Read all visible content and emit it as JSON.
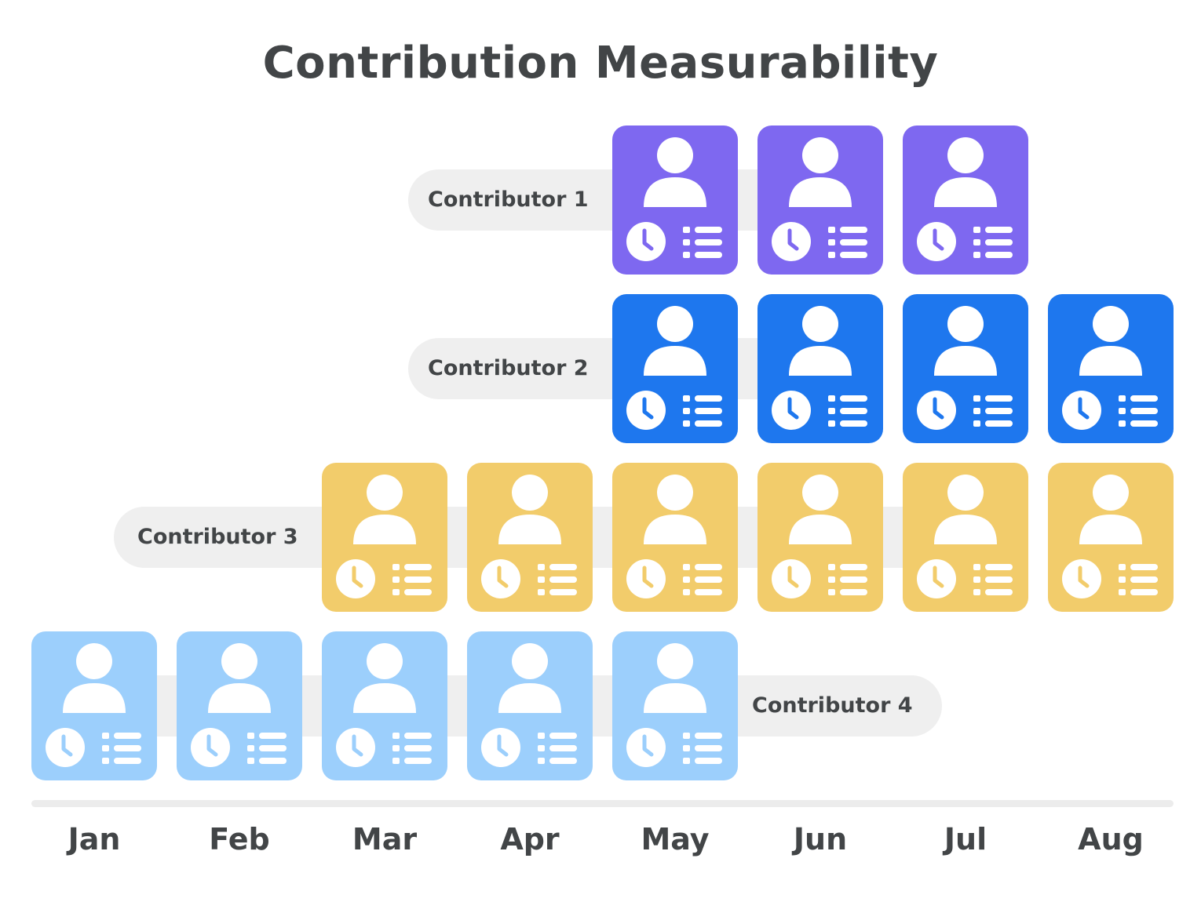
{
  "title": "Contribution Measurability",
  "months": [
    "Jan",
    "Feb",
    "Mar",
    "Apr",
    "May",
    "Jun",
    "Jul",
    "Aug"
  ],
  "contributors": [
    {
      "label": "Contributor 1",
      "color": "#7e68f0",
      "months": [
        "May",
        "Jun",
        "Jul"
      ]
    },
    {
      "label": "Contributor 2",
      "color": "#1e77ee",
      "months": [
        "May",
        "Jun",
        "Jul",
        "Aug"
      ]
    },
    {
      "label": "Contributor 3",
      "color": "#f2cc6b",
      "months": [
        "Mar",
        "Apr",
        "May",
        "Jun",
        "Jul",
        "Aug"
      ]
    },
    {
      "label": "Contributor 4",
      "color": "#9ccffc",
      "months": [
        "Jan",
        "Feb",
        "Mar",
        "Apr",
        "May"
      ]
    }
  ],
  "card_icons": [
    "person-icon",
    "clock-icon",
    "list-icon"
  ]
}
